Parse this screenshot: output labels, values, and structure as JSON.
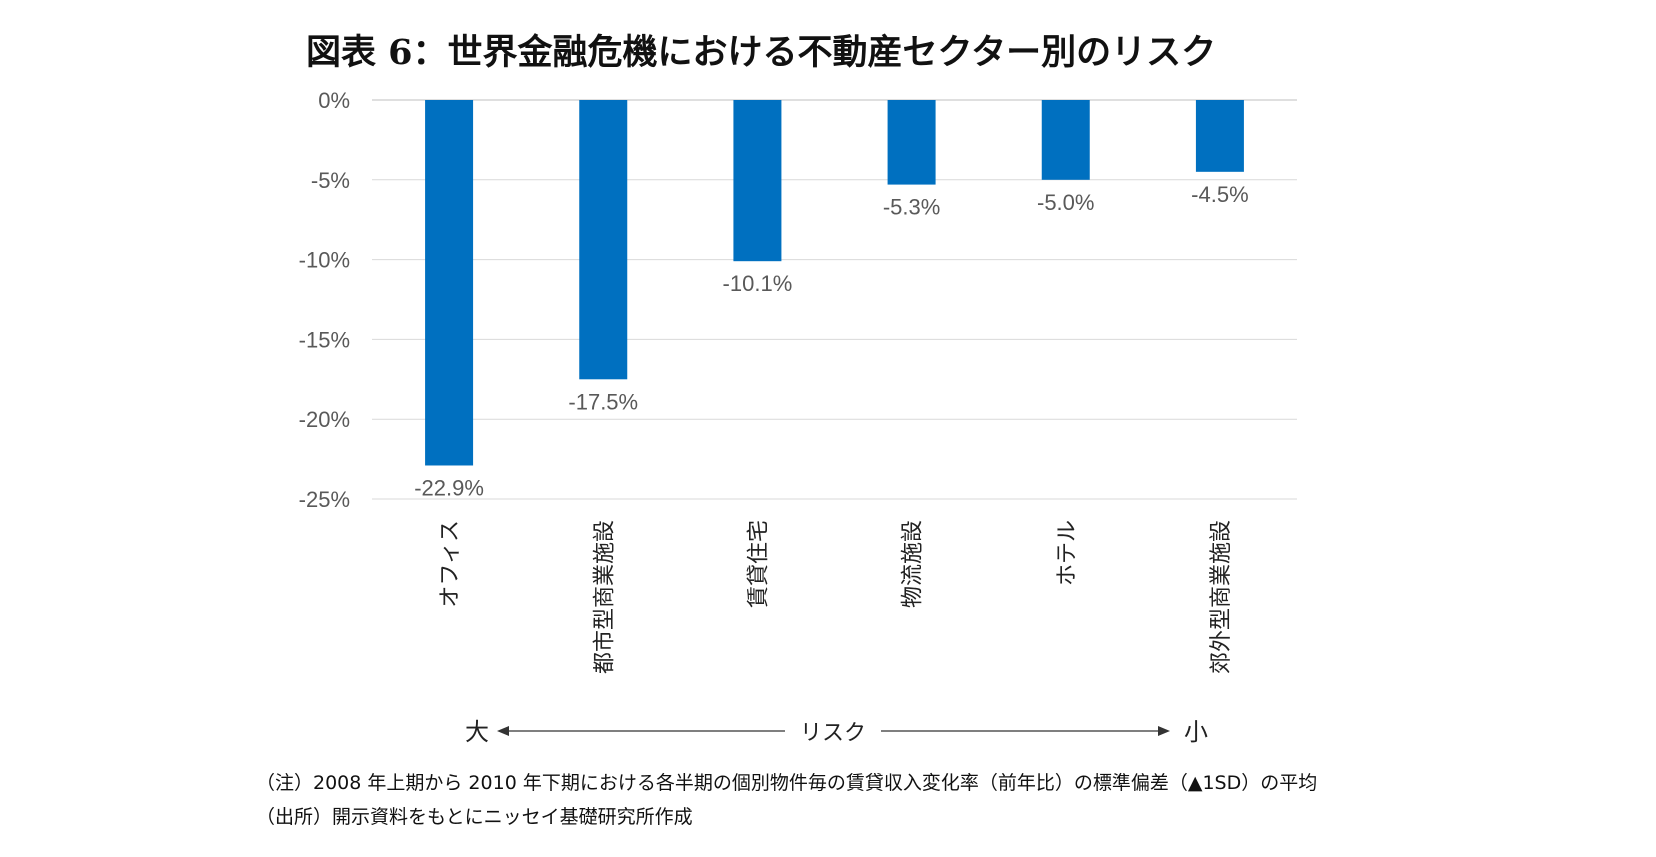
{
  "title": "図表 6：世界金融危機における不動産セクター別のリスク",
  "chart_data": {
    "type": "bar",
    "categories": [
      "オフィス",
      "都市型商業施設",
      "賃貸住宅",
      "物流施設",
      "ホテル",
      "郊外型商業施設"
    ],
    "values": [
      -22.9,
      -17.5,
      -10.1,
      -5.3,
      -5.0,
      -4.5
    ],
    "data_labels": [
      "-22.9%",
      "-17.5%",
      "-10.1%",
      "-5.3%",
      "-5.0%",
      "-4.5%"
    ],
    "y_ticks": [
      0,
      -5,
      -10,
      -15,
      -20,
      -25
    ],
    "y_tick_labels": [
      "0%",
      "-5%",
      "-10%",
      "-15%",
      "-20%",
      "-25%"
    ],
    "ylim": [
      -25,
      0
    ],
    "grid": true,
    "bar_color": "#0070C0"
  },
  "risk_axis": {
    "left": "大",
    "center": "リスク",
    "right": "小"
  },
  "notes": {
    "note1": "（注）2008 年上期から 2010 年下期における各半期の個別物件毎の賃貸収入変化率（前年比）の標準偏差（▲1SD）の平均",
    "note2": "（出所）開示資料をもとにニッセイ基礎研究所作成"
  }
}
